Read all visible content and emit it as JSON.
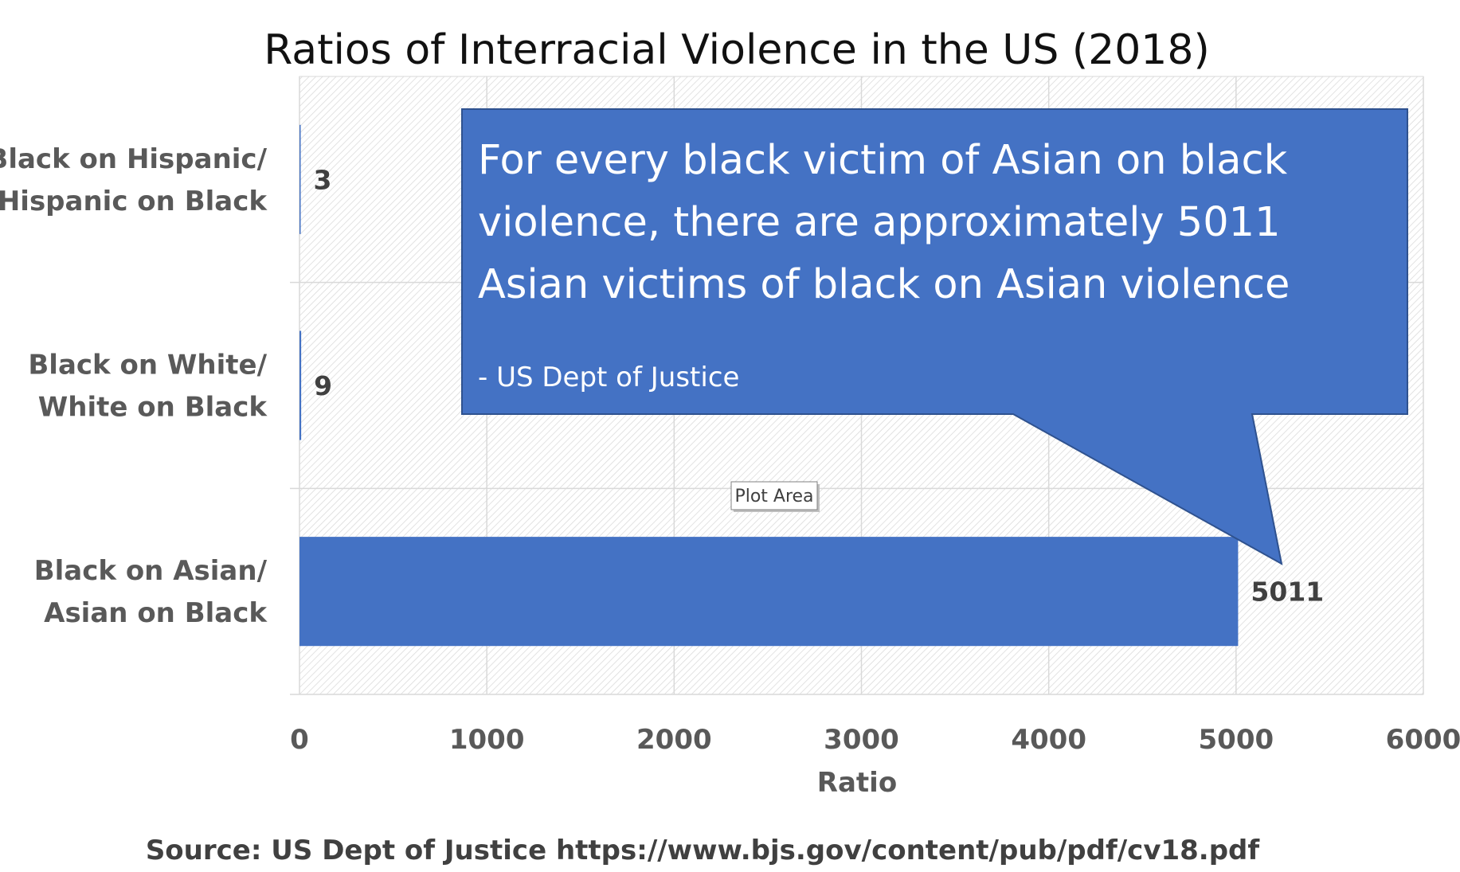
{
  "chart_data": {
    "type": "bar",
    "orientation": "horizontal",
    "title": "Ratios of Interracial Violence in the US (2018)",
    "categories": [
      [
        "Black on Hispanic/",
        "Hispanic on Black"
      ],
      [
        "Black on White/",
        "White on Black"
      ],
      [
        "Black on Asian/",
        "Asian on Black"
      ]
    ],
    "values": [
      3,
      9,
      5011
    ],
    "data_labels": [
      "3",
      "9",
      "5011"
    ],
    "xlabel": "Ratio",
    "ylabel": "",
    "xlim": [
      0,
      6000
    ],
    "x_ticks": [
      "0",
      "1000",
      "2000",
      "3000",
      "4000",
      "5000",
      "6000"
    ],
    "grid": true,
    "legend": "none",
    "bar_color": "#4472C4"
  },
  "callout": {
    "lines": [
      "For every black victim of Asian on black",
      "violence, there are approximately 5011",
      "Asian victims of black on Asian violence"
    ],
    "attribution": "- US Dept of Justice",
    "fill_color": "#4472C4",
    "border_color": "#2F528F"
  },
  "tooltip": {
    "text": "Plot Area"
  },
  "source": {
    "text": "Source:  US Dept of Justice  https://www.bjs.gov/content/pub/pdf/cv18.pdf"
  },
  "colors": {
    "plot_hatch": "#d9d9d9",
    "gridline": "#d9d9d9"
  }
}
